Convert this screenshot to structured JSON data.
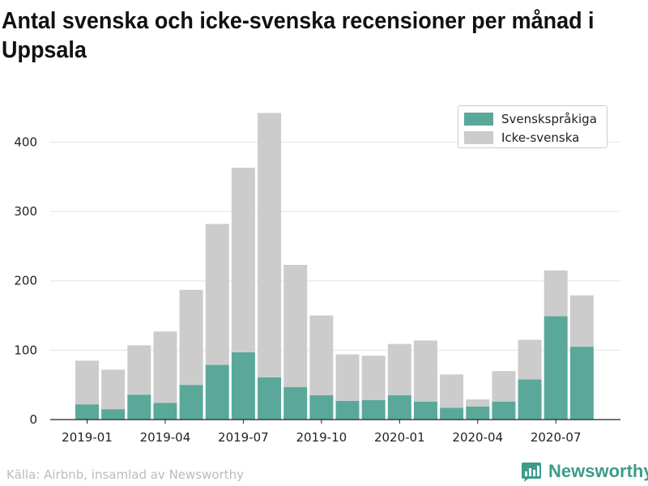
{
  "title": "Antal svenska och icke-svenska recensioner per månad i Uppsala",
  "source": "Källa: Airbnb, insamlad av Newsworthy",
  "logo_text": "Newsworthy",
  "colors": {
    "swedish": "#5aa89a",
    "non_swedish": "#cccccc",
    "brand": "#3d9b8a"
  },
  "chart_data": {
    "type": "bar",
    "stacked": true,
    "categories": [
      "2019-01",
      "2019-02",
      "2019-03",
      "2019-04",
      "2019-05",
      "2019-06",
      "2019-07",
      "2019-08",
      "2019-09",
      "2019-10",
      "2019-11",
      "2019-12",
      "2020-01",
      "2020-02",
      "2020-03",
      "2020-04",
      "2020-05",
      "2020-06",
      "2020-07",
      "2020-08"
    ],
    "x_tick_labels": [
      "2019-01",
      "2019-04",
      "2019-07",
      "2019-10",
      "2020-01",
      "2020-04",
      "2020-07"
    ],
    "series": [
      {
        "name": "Svenskspråkiga",
        "values": [
          22,
          15,
          36,
          24,
          50,
          79,
          97,
          61,
          47,
          35,
          27,
          28,
          35,
          26,
          17,
          19,
          26,
          58,
          149,
          105
        ]
      },
      {
        "name": "Icke-svenska",
        "values": [
          63,
          57,
          71,
          103,
          137,
          203,
          266,
          381,
          176,
          115,
          67,
          64,
          74,
          88,
          48,
          10,
          44,
          57,
          66,
          74
        ]
      }
    ],
    "y_ticks": [
      0,
      100,
      200,
      300,
      400
    ],
    "ylim": [
      0,
      460
    ],
    "grid": true,
    "legend_position": "top-right",
    "xlabel": "",
    "ylabel": ""
  }
}
